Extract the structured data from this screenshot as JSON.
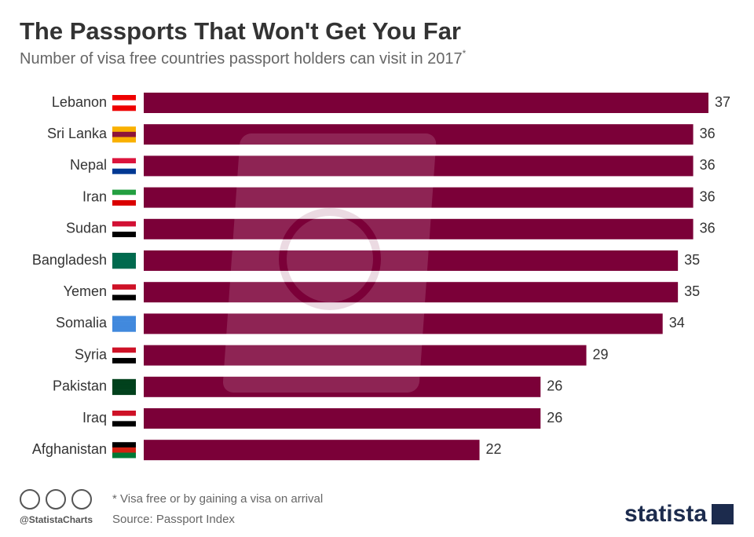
{
  "chart_data": {
    "type": "bar",
    "orientation": "horizontal",
    "title": "The Passports That Won't Get You Far",
    "subtitle": "Number of visa free countries passport holders can visit in 2017",
    "subtitle_note": "*",
    "categories": [
      "Lebanon",
      "Sri Lanka",
      "Nepal",
      "Iran",
      "Sudan",
      "Bangladesh",
      "Yemen",
      "Somalia",
      "Syria",
      "Pakistan",
      "Iraq",
      "Afghanistan"
    ],
    "values": [
      37,
      36,
      36,
      36,
      36,
      35,
      35,
      34,
      29,
      26,
      26,
      22
    ],
    "color": "#7b0038"
  },
  "footer": {
    "note": "* Visa free or by gaining a visa on arrival",
    "source": "Source: Passport Index",
    "credit": "@StatistaCharts",
    "brand": "statista"
  }
}
